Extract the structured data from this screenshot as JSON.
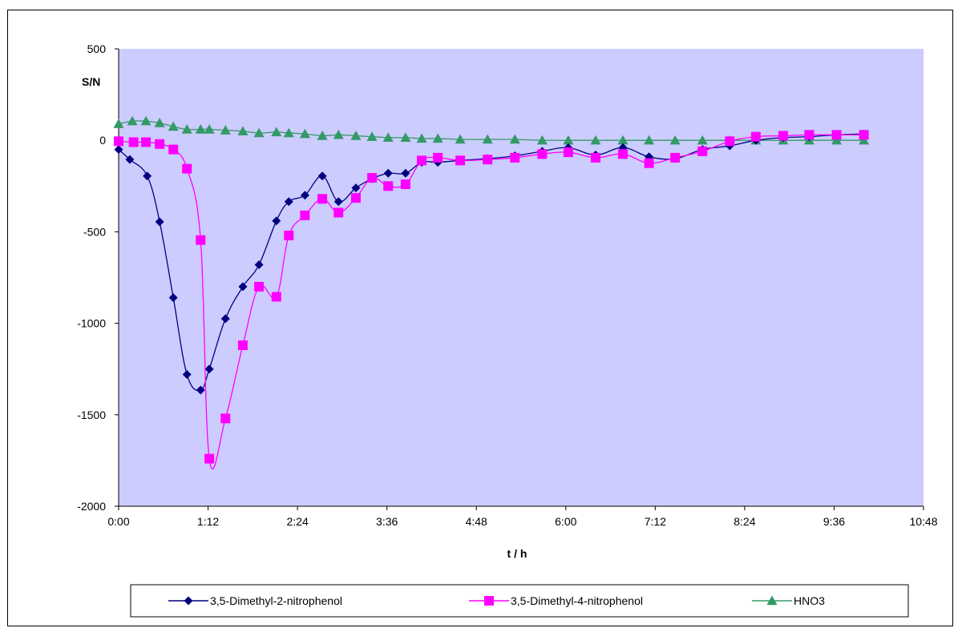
{
  "chart_data": {
    "type": "line",
    "title": "",
    "xlabel": "t / h",
    "ylabel": "S/N",
    "xlim": [
      "0:00",
      "10:48"
    ],
    "ylim": [
      -2000,
      500
    ],
    "x_ticks": [
      "0:00",
      "1:12",
      "2:24",
      "3:36",
      "4:48",
      "6:00",
      "7:12",
      "8:24",
      "9:36",
      "10:48"
    ],
    "y_ticks": [
      500,
      0,
      -500,
      -1000,
      -1500,
      -2000
    ],
    "grid": false,
    "legend": "bottom",
    "plot_background": "#ccccff",
    "series": [
      {
        "name": "3,5-Dimethyl-2-nitrophenol",
        "color": "#000080",
        "marker": "diamond",
        "x": [
          "0:00",
          "0:09",
          "0:23",
          "0:33",
          "0:44",
          "0:55",
          "1:06",
          "1:13",
          "1:26",
          "1:40",
          "1:53",
          "2:07",
          "2:17",
          "2:30",
          "2:44",
          "2:57",
          "3:11",
          "3:24",
          "3:37",
          "3:51",
          "4:04",
          "4:17",
          "4:35",
          "4:57",
          "5:19",
          "5:41",
          "6:02",
          "6:24",
          "6:46",
          "7:07",
          "7:28",
          "7:50",
          "8:12",
          "8:33",
          "8:55",
          "9:16",
          "9:38",
          "10:00"
        ],
        "values": [
          -50,
          -105,
          -195,
          -445,
          -860,
          -1280,
          -1365,
          -1250,
          -975,
          -800,
          -680,
          -440,
          -335,
          -300,
          -195,
          -335,
          -260,
          -210,
          -180,
          -180,
          -120,
          -120,
          -110,
          -100,
          -85,
          -60,
          -40,
          -80,
          -40,
          -90,
          -100,
          -50,
          -30,
          0,
          15,
          20,
          30,
          35
        ]
      },
      {
        "name": "3,5-Dimethyl-4-nitrophenol",
        "color": "#ff00ff",
        "marker": "square",
        "x": [
          "0:00",
          "0:12",
          "0:22",
          "0:33",
          "0:44",
          "0:55",
          "1:06",
          "1:13",
          "1:26",
          "1:40",
          "1:53",
          "2:07",
          "2:17",
          "2:30",
          "2:44",
          "2:57",
          "3:11",
          "3:24",
          "3:37",
          "3:51",
          "4:04",
          "4:17",
          "4:35",
          "4:57",
          "5:19",
          "5:41",
          "6:02",
          "6:24",
          "6:46",
          "7:07",
          "7:28",
          "7:50",
          "8:12",
          "8:33",
          "8:55",
          "9:16",
          "9:38",
          "10:00"
        ],
        "values": [
          -5,
          -10,
          -10,
          -20,
          -50,
          -155,
          -545,
          -1740,
          -1520,
          -1120,
          -800,
          -855,
          -520,
          -410,
          -320,
          -395,
          -315,
          -205,
          -250,
          -240,
          -110,
          -95,
          -110,
          -105,
          -95,
          -75,
          -65,
          -95,
          -75,
          -125,
          -95,
          -60,
          -5,
          20,
          25,
          30,
          30,
          30
        ]
      },
      {
        "name": "HNO3",
        "color": "#339966",
        "marker": "triangle",
        "x": [
          "0:00",
          "0:11",
          "0:22",
          "0:33",
          "0:44",
          "0:55",
          "1:06",
          "1:13",
          "1:26",
          "1:40",
          "1:53",
          "2:07",
          "2:17",
          "2:30",
          "2:44",
          "2:57",
          "3:11",
          "3:24",
          "3:37",
          "3:51",
          "4:04",
          "4:17",
          "4:35",
          "4:57",
          "5:19",
          "5:41",
          "6:02",
          "6:24",
          "6:46",
          "7:07",
          "7:28",
          "7:50",
          "8:12",
          "8:33",
          "8:55",
          "9:16",
          "9:38",
          "10:00"
        ],
        "values": [
          90,
          105,
          105,
          95,
          75,
          60,
          60,
          60,
          55,
          50,
          40,
          45,
          40,
          35,
          25,
          30,
          25,
          20,
          15,
          15,
          10,
          10,
          5,
          5,
          5,
          0,
          0,
          0,
          0,
          0,
          0,
          0,
          0,
          0,
          0,
          0,
          0,
          0
        ]
      }
    ]
  }
}
